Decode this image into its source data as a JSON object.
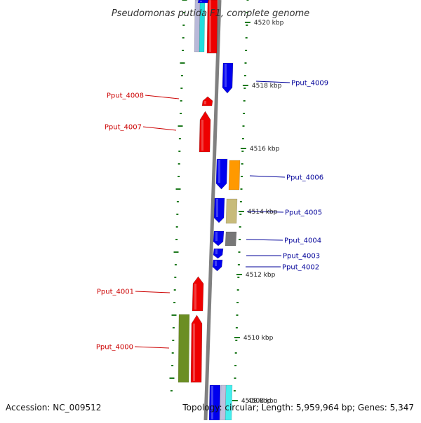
{
  "title": "Pseudomonas putida F1, complete genome",
  "footer": {
    "accession": "Accession: NC_009512",
    "summary": "Topology: circular; Length: 5,959,964 bp; Genes: 5,347"
  },
  "colors": {
    "backbone": "#808080",
    "tick": "#1f7a1f",
    "forward_label": "#cc0000",
    "reverse_label": "#000099"
  },
  "scale": {
    "kbp_min": 4508,
    "kbp_max": 4521,
    "ticks": [
      {
        "kbp": 4520,
        "label": "4520 kbp"
      },
      {
        "kbp": 4518,
        "label": "4518 kbp"
      },
      {
        "kbp": 4516,
        "label": "4516 kbp"
      },
      {
        "kbp": 4514,
        "label": "4514 kbp"
      },
      {
        "kbp": 4512,
        "label": "4512 kbp"
      },
      {
        "kbp": 4510,
        "label": "4510 kbp"
      },
      {
        "kbp": 4508,
        "label": "4508 kbp"
      }
    ]
  },
  "genes": [
    {
      "name": "Pput_4009",
      "strand": "reverse",
      "color": "#0000ee",
      "labeled": true
    },
    {
      "name": "Pput_4008",
      "strand": "forward",
      "color": "#ee0000",
      "labeled": true
    },
    {
      "name": "Pput_4007",
      "strand": "forward",
      "color": "#ee0000",
      "labeled": true
    },
    {
      "name": "Pput_4006",
      "strand": "reverse",
      "color": "#0000ee",
      "labeled": true
    },
    {
      "name": "Pput_4005",
      "strand": "reverse",
      "color": "#0000ee",
      "labeled": true
    },
    {
      "name": "Pput_4004",
      "strand": "reverse",
      "color": "#0000ee",
      "labeled": true
    },
    {
      "name": "Pput_4003",
      "strand": "reverse",
      "color": "#0000ee",
      "labeled": true
    },
    {
      "name": "Pput_4002",
      "strand": "reverse",
      "color": "#0000ee",
      "labeled": true
    },
    {
      "name": "Pput_4001",
      "strand": "forward",
      "color": "#ee0000",
      "labeled": true
    },
    {
      "name": "Pput_4000",
      "strand": "forward",
      "color": "#ee0000",
      "labeled": true
    },
    {
      "name": "top-forward-gene",
      "strand": "forward",
      "color": "#ee0000",
      "labeled": false
    },
    {
      "name": "top-reverse-gene",
      "strand": "reverse",
      "color": "#0000ee",
      "labeled": false
    },
    {
      "name": "bottom-reverse-gene",
      "strand": "reverse",
      "color": "#0000ee",
      "labeled": false
    }
  ],
  "feature_tracks": [
    {
      "name": "track-orange",
      "color": "#ff9900"
    },
    {
      "name": "track-khaki",
      "color": "#c8bb7a"
    },
    {
      "name": "track-gray",
      "color": "#777777"
    },
    {
      "name": "track-olive",
      "color": "#6b8e23"
    },
    {
      "name": "track-cyan-top",
      "color": "#22dddd"
    },
    {
      "name": "track-lavender-top",
      "color": "#b8b8d8"
    },
    {
      "name": "track-cyan-bottom",
      "color": "#44eeee"
    },
    {
      "name": "track-lavender-bottom",
      "color": "#c0c0dd"
    }
  ]
}
